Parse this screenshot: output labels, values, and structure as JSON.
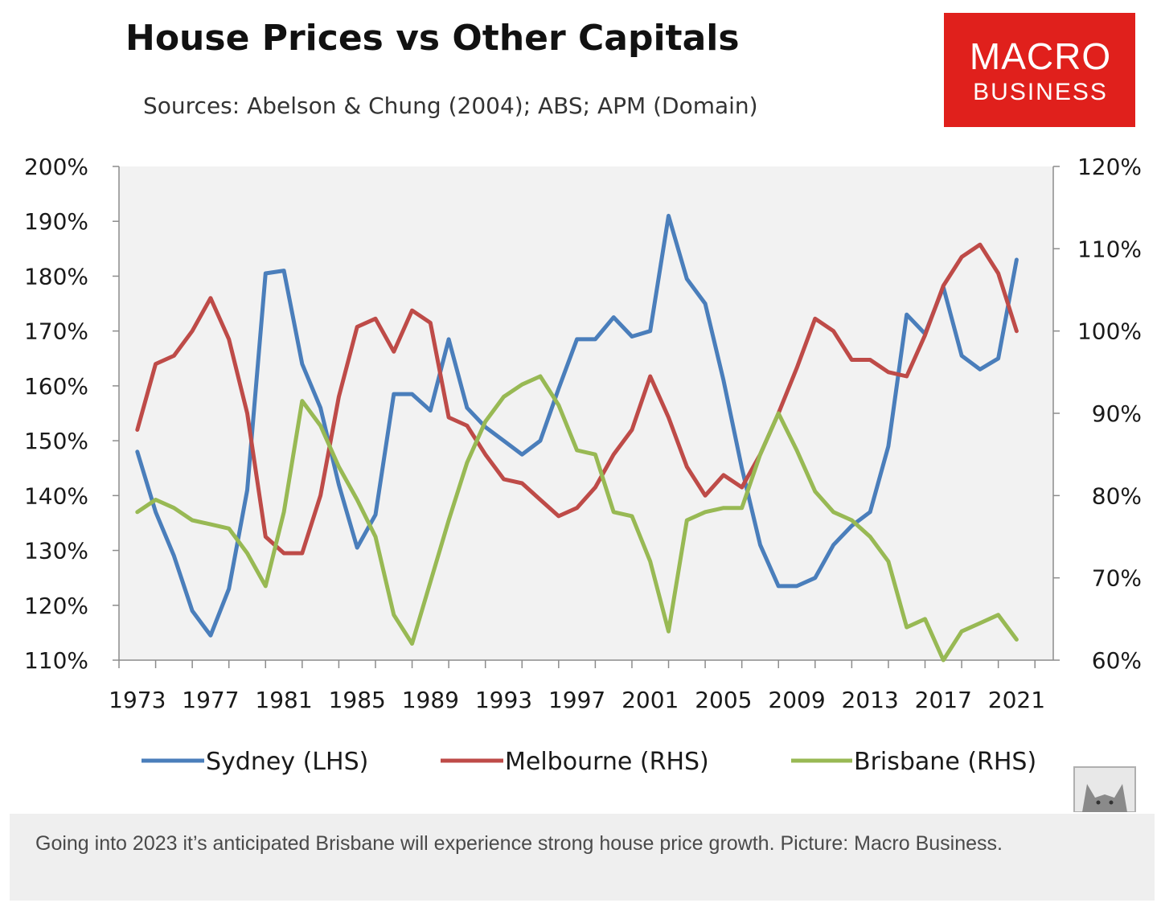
{
  "caption": "Going into 2023 it’s anticipated Brisbane will experience strong house price growth. Picture: Macro Business.",
  "logo": {
    "line1": "MACRO",
    "line2": "BUSINESS",
    "color": "#e0201c"
  },
  "watermark_icon": "wolf-icon",
  "chart_data": {
    "type": "line",
    "title": "House Prices vs Other Capitals",
    "subtitle": "Sources: Abelson & Chung (2004); ABS; APM (Domain)",
    "xlabel": "",
    "ylabel_left": "",
    "ylabel_right": "",
    "grid": false,
    "legend_position": "bottom",
    "x_range": [
      1972,
      2023
    ],
    "y_left_range": [
      110,
      200
    ],
    "y_right_range": [
      60,
      120
    ],
    "x_tick_labels": [
      "1973",
      "1977",
      "1981",
      "1985",
      "1989",
      "1993",
      "1997",
      "2001",
      "2005",
      "2009",
      "2013",
      "2017",
      "2021"
    ],
    "y_left_tick_labels": [
      "110%",
      "120%",
      "130%",
      "140%",
      "150%",
      "160%",
      "170%",
      "180%",
      "190%",
      "200%"
    ],
    "y_right_tick_labels": [
      "60%",
      "70%",
      "80%",
      "90%",
      "100%",
      "110%",
      "120%"
    ],
    "x": [
      1973,
      1974,
      1975,
      1976,
      1977,
      1978,
      1979,
      1980,
      1981,
      1982,
      1983,
      1984,
      1985,
      1986,
      1987,
      1988,
      1989,
      1990,
      1991,
      1992,
      1993,
      1994,
      1995,
      1996,
      1997,
      1998,
      1999,
      2000,
      2001,
      2002,
      2003,
      2004,
      2005,
      2006,
      2007,
      2008,
      2009,
      2010,
      2011,
      2012,
      2013,
      2014,
      2015,
      2016,
      2017,
      2018,
      2019,
      2020,
      2021
    ],
    "series": [
      {
        "name": "Sydney (LHS)",
        "axis": "left",
        "color": "#4a7ebb",
        "values": [
          148,
          137,
          129,
          119,
          114.5,
          123,
          141,
          180.5,
          181,
          164,
          156,
          142,
          130.5,
          136.5,
          158.5,
          158.5,
          155.5,
          168.5,
          156,
          152.5,
          150,
          147.5,
          150,
          159.5,
          168.5,
          168.5,
          172.5,
          169,
          170,
          191,
          179.5,
          175,
          161,
          145,
          131,
          123.5,
          123.5,
          125,
          131,
          134.5,
          137,
          149,
          173,
          169.5,
          178,
          165.5,
          163,
          165,
          183
        ]
      },
      {
        "name": "Melbourne (RHS)",
        "axis": "right",
        "color": "#be4b48",
        "values": [
          88,
          96,
          97,
          100,
          104,
          99,
          90,
          75,
          73,
          73,
          80,
          92,
          100.5,
          101.5,
          97.5,
          102.5,
          101,
          89.5,
          88.5,
          85,
          82,
          81.5,
          79.5,
          77.5,
          78.5,
          81,
          85,
          88,
          94.5,
          89.5,
          83.5,
          80,
          82.5,
          81,
          85,
          90,
          95.5,
          101.5,
          100,
          96.5,
          96.5,
          95,
          94.5,
          99.5,
          105.5,
          109,
          110.5,
          107,
          100
        ]
      },
      {
        "name": "Brisbane (RHS)",
        "axis": "right",
        "color": "#98b954",
        "values": [
          78,
          79.5,
          78.5,
          77,
          76.5,
          76,
          73,
          69,
          78,
          91.5,
          88.5,
          83.5,
          79.5,
          75,
          65.5,
          62,
          69.5,
          77,
          84,
          89,
          92,
          93.5,
          94.5,
          91,
          85.5,
          85,
          78,
          77.5,
          72,
          63.5,
          77,
          78,
          78.5,
          78.5,
          85,
          90,
          85.5,
          80.5,
          78,
          77,
          75,
          72,
          64,
          65,
          60,
          63.5,
          64.5,
          65.5,
          62.5
        ]
      }
    ]
  }
}
